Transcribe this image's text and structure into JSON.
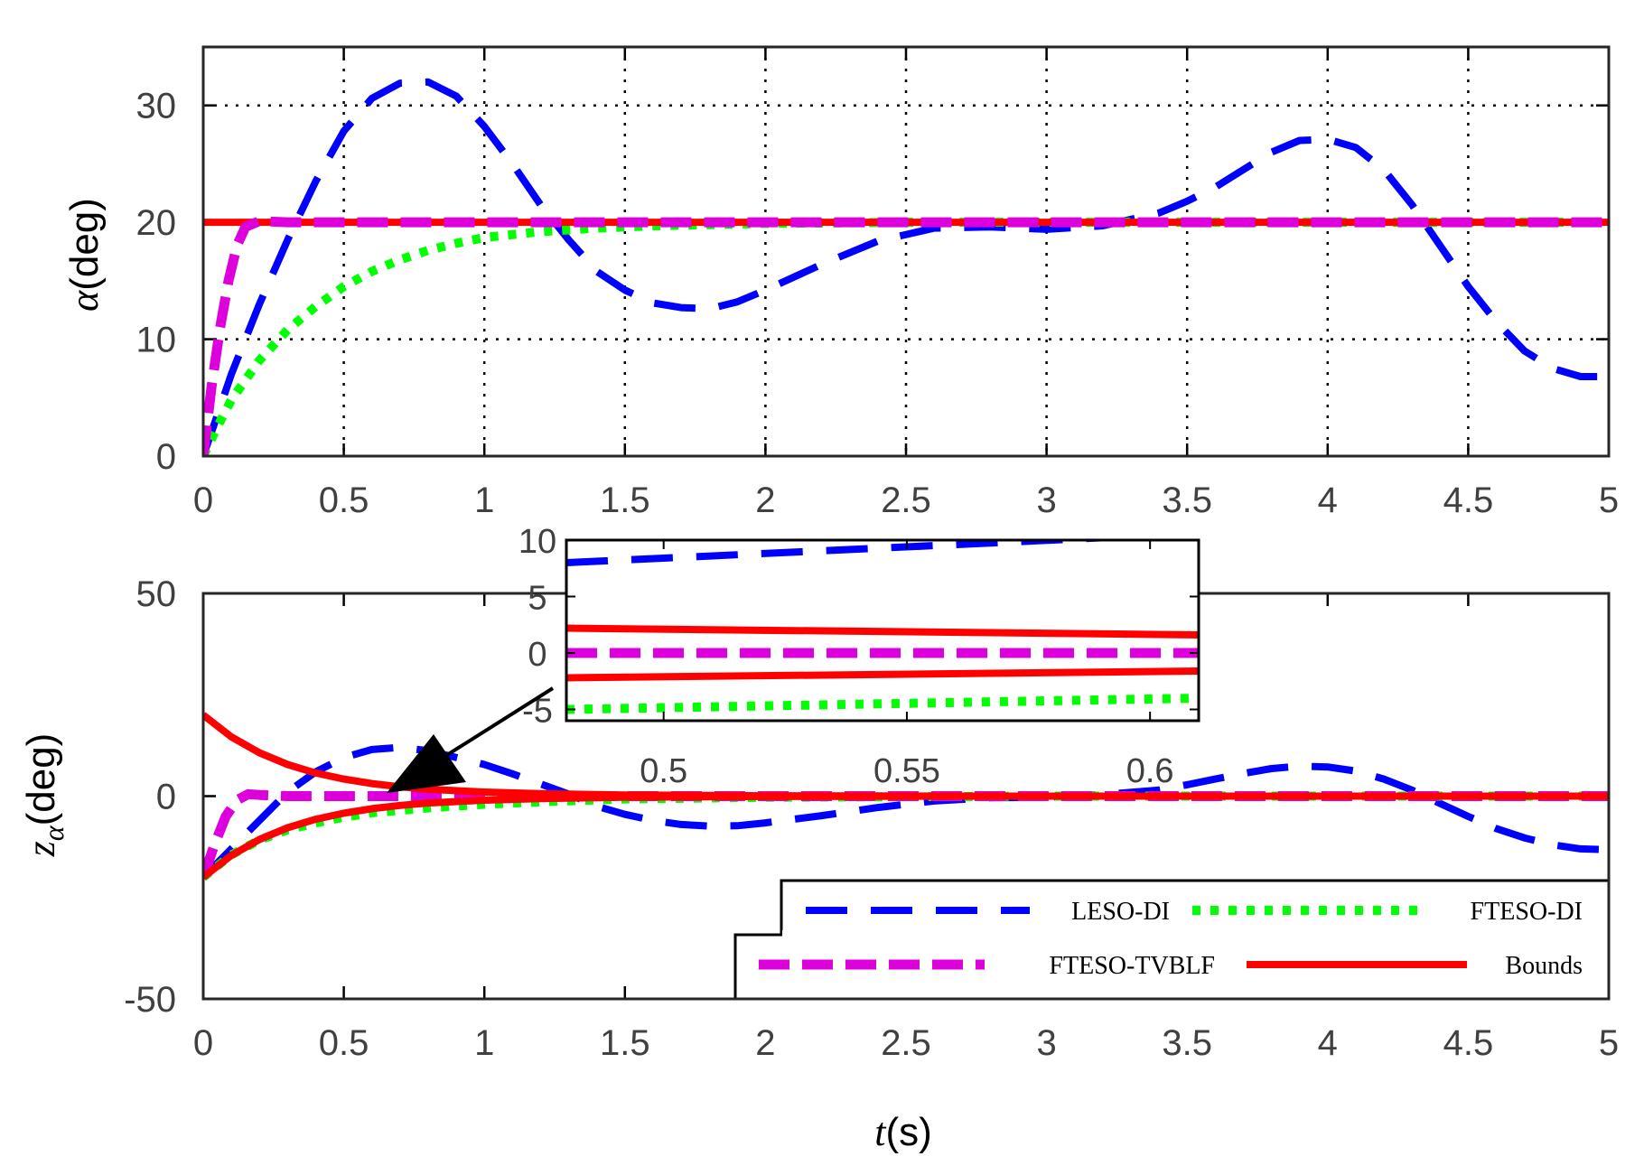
{
  "chart_data": [
    {
      "type": "line",
      "ylabel_symbol": "α",
      "ylabel_unit": "(deg)",
      "xlim": [
        0,
        5
      ],
      "ylim": [
        0,
        35
      ],
      "xticks": [
        "0",
        "0.5",
        "1",
        "1.5",
        "2",
        "2.5",
        "3",
        "3.5",
        "4",
        "4.5",
        "5"
      ],
      "yticks": [
        "0",
        "10",
        "20",
        "30"
      ],
      "grid": true,
      "series": [
        {
          "name": "LESO-DI",
          "color": "#0000ff",
          "style": "dashed",
          "x": [
            0,
            0.05,
            0.1,
            0.2,
            0.3,
            0.4,
            0.5,
            0.6,
            0.7,
            0.8,
            0.9,
            1.0,
            1.1,
            1.2,
            1.3,
            1.4,
            1.5,
            1.6,
            1.7,
            1.8,
            1.9,
            2.0,
            2.2,
            2.4,
            2.6,
            2.8,
            3.0,
            3.2,
            3.4,
            3.5,
            3.6,
            3.7,
            3.8,
            3.9,
            4.0,
            4.1,
            4.2,
            4.3,
            4.4,
            4.5,
            4.6,
            4.7,
            4.8,
            4.9,
            5.0
          ],
          "y": [
            0,
            3.5,
            7,
            13,
            18.5,
            23.5,
            27.8,
            30.6,
            31.9,
            32.0,
            30.8,
            28.2,
            25.0,
            21.5,
            18.5,
            15.8,
            14.2,
            13.1,
            12.7,
            12.6,
            13.2,
            14.2,
            16.4,
            18.4,
            19.5,
            19.6,
            19.4,
            19.7,
            20.8,
            21.8,
            23.0,
            24.5,
            26.0,
            27.0,
            27.1,
            26.4,
            24.5,
            21.5,
            18.0,
            14.5,
            11.5,
            9.0,
            7.5,
            6.8,
            6.8
          ]
        },
        {
          "name": "FTESO-DI",
          "color": "#00ff00",
          "style": "dotted",
          "x": [
            0,
            0.05,
            0.1,
            0.2,
            0.3,
            0.4,
            0.5,
            0.6,
            0.7,
            0.8,
            0.9,
            1.0,
            1.2,
            1.4,
            1.6,
            1.8,
            2.0,
            2.5,
            3.0,
            3.5,
            4.0,
            4.5,
            5.0
          ],
          "y": [
            0,
            2.5,
            4.8,
            8.2,
            10.8,
            12.8,
            14.5,
            15.8,
            16.8,
            17.6,
            18.2,
            18.7,
            19.2,
            19.5,
            19.7,
            19.8,
            19.9,
            20.0,
            20.0,
            20.0,
            20.0,
            20.0,
            20.0
          ]
        },
        {
          "name": "FTESO-TVBLF",
          "color": "#dd00dd",
          "style": "dashdot",
          "x": [
            0,
            0.03,
            0.06,
            0.09,
            0.12,
            0.15,
            0.2,
            0.3,
            1.0,
            2.0,
            3.0,
            4.0,
            5.0
          ],
          "y": [
            0,
            6,
            11,
            15,
            18,
            19.6,
            20.1,
            20.0,
            20.0,
            20.0,
            20.0,
            20.0,
            20.0
          ]
        },
        {
          "name": "Bounds",
          "color": "#ff0000",
          "style": "solid",
          "x": [
            0,
            5
          ],
          "y": [
            20,
            20
          ]
        }
      ]
    },
    {
      "type": "line",
      "ylabel_symbol": "z",
      "ylabel_sub": "α",
      "ylabel_unit": "(deg)",
      "xlabel_symbol": "t",
      "xlabel_unit": "(s)",
      "xlim": [
        0,
        5
      ],
      "ylim": [
        -50,
        50
      ],
      "xticks": [
        "0",
        "0.5",
        "1",
        "1.5",
        "2",
        "2.5",
        "3",
        "3.5",
        "4",
        "4.5",
        "5"
      ],
      "yticks": [
        "-50",
        "0",
        "50"
      ],
      "grid": false,
      "series": [
        {
          "name": "LESO-DI",
          "color": "#0000ff",
          "style": "dashed",
          "x": [
            0,
            0.1,
            0.2,
            0.3,
            0.4,
            0.5,
            0.6,
            0.7,
            0.8,
            0.9,
            1.0,
            1.1,
            1.2,
            1.3,
            1.4,
            1.5,
            1.6,
            1.7,
            1.8,
            1.9,
            2.0,
            2.2,
            2.4,
            2.6,
            2.8,
            3.0,
            3.2,
            3.4,
            3.5,
            3.6,
            3.7,
            3.8,
            3.9,
            4.0,
            4.1,
            4.2,
            4.3,
            4.4,
            4.5,
            4.6,
            4.7,
            4.8,
            4.9,
            5.0
          ],
          "y": [
            -20,
            -13,
            -6,
            1,
            6,
            9.5,
            11.5,
            12,
            11.2,
            9.5,
            7.8,
            5.5,
            3,
            0.5,
            -2.5,
            -4.5,
            -6,
            -7,
            -7.4,
            -7.3,
            -6.6,
            -4.8,
            -2.8,
            -1.2,
            -0.4,
            -0.3,
            0.4,
            1.5,
            2.8,
            4.2,
            5.6,
            6.8,
            7.4,
            7.2,
            6.2,
            4.2,
            1.5,
            -1.8,
            -5.0,
            -8.0,
            -10.3,
            -12.0,
            -13.0,
            -13.2
          ]
        },
        {
          "name": "FTESO-DI",
          "color": "#00ff00",
          "style": "dotted",
          "x": [
            0,
            0.1,
            0.2,
            0.3,
            0.4,
            0.5,
            0.6,
            0.8,
            1.0,
            1.2,
            1.5,
            2.0,
            3.0,
            4.0,
            5.0
          ],
          "y": [
            -20,
            -14.5,
            -10.8,
            -8.3,
            -6.6,
            -5.2,
            -4.1,
            -2.9,
            -2.0,
            -1.4,
            -0.7,
            -0.3,
            0,
            0,
            0
          ]
        },
        {
          "name": "FTESO-TVBLF",
          "color": "#dd00dd",
          "style": "dashdot",
          "x": [
            0,
            0.04,
            0.08,
            0.12,
            0.16,
            0.2,
            0.3,
            1.0,
            2.0,
            5.0
          ],
          "y": [
            -20,
            -12,
            -5,
            -1,
            0.5,
            0.3,
            0,
            0,
            0,
            0
          ]
        },
        {
          "name": "Bounds",
          "color": "#ff0000",
          "style": "solid",
          "x": [
            0,
            0.1,
            0.2,
            0.3,
            0.4,
            0.5,
            0.6,
            0.7,
            0.8,
            1.0,
            1.2,
            1.5,
            2.0,
            3.0,
            4.0,
            5.0
          ],
          "y": [
            20,
            14.6,
            10.7,
            7.8,
            5.7,
            4.2,
            3.1,
            2.3,
            1.7,
            1.0,
            0.6,
            0.3,
            0.1,
            0,
            0,
            0
          ]
        },
        {
          "name": "Bounds",
          "color": "#ff0000",
          "style": "solid",
          "x": [
            0,
            0.1,
            0.2,
            0.3,
            0.4,
            0.5,
            0.6,
            0.7,
            0.8,
            1.0,
            1.2,
            1.5,
            2.0,
            3.0,
            4.0,
            5.0
          ],
          "y": [
            -20,
            -14.6,
            -10.7,
            -7.8,
            -5.7,
            -4.2,
            -3.1,
            -2.3,
            -1.7,
            -1.0,
            -0.6,
            -0.3,
            -0.1,
            0,
            0,
            0
          ]
        }
      ],
      "legend": {
        "placement": "bottom-right",
        "entries": [
          "LESO-DI",
          "FTESO-DI",
          "FTESO-TVBLF",
          "Bounds"
        ]
      },
      "inset": {
        "xlim": [
          0.48,
          0.61
        ],
        "ylim": [
          -6,
          10
        ],
        "xticks": [
          "0.5",
          "0.55",
          "0.6"
        ],
        "yticks": [
          "10",
          "5",
          "0",
          "-5"
        ],
        "series": [
          {
            "name": "LESO-DI",
            "color": "#0000ff",
            "style": "dashed",
            "x": [
              0.48,
              0.5,
              0.52,
              0.54,
              0.56,
              0.58,
              0.6,
              0.61
            ],
            "y": [
              8.0,
              8.4,
              8.8,
              9.2,
              9.6,
              10.0,
              10.4,
              10.6
            ]
          },
          {
            "name": "Bounds",
            "color": "#ff0000",
            "style": "solid",
            "x": [
              0.48,
              0.61
            ],
            "y": [
              2.2,
              1.6
            ]
          },
          {
            "name": "Bounds",
            "color": "#ff0000",
            "style": "solid",
            "x": [
              0.48,
              0.61
            ],
            "y": [
              -2.2,
              -1.6
            ]
          },
          {
            "name": "FTESO-TVBLF",
            "color": "#dd00dd",
            "style": "dashdot",
            "x": [
              0.48,
              0.61
            ],
            "y": [
              0,
              0
            ]
          },
          {
            "name": "FTESO-DI",
            "color": "#00ff00",
            "style": "dotted",
            "x": [
              0.48,
              0.61
            ],
            "y": [
              -5.0,
              -4.0
            ]
          }
        ]
      }
    }
  ]
}
